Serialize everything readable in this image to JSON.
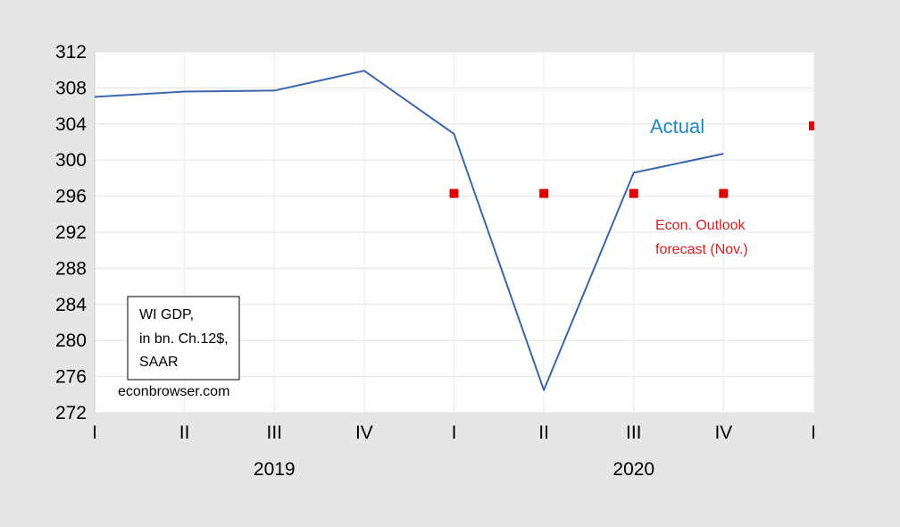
{
  "chart_data": {
    "type": "line",
    "categories": [
      "I",
      "II",
      "III",
      "IV",
      "I",
      "II",
      "III",
      "IV",
      "I"
    ],
    "years": [
      "2019",
      "2020"
    ],
    "ylim": [
      272,
      312
    ],
    "yticks": [
      312,
      308,
      304,
      300,
      296,
      292,
      288,
      284,
      280,
      276,
      272
    ],
    "grid": true,
    "series": [
      {
        "name": "Actual",
        "color": "#3b66ad",
        "style": "line",
        "values": [
          307.0,
          307.6,
          307.7,
          309.9,
          302.9,
          274.5,
          298.6,
          300.7,
          null
        ]
      },
      {
        "name": "Econ. Outlook forecast (Nov.)",
        "color": "#e00000",
        "style": "marker",
        "values": [
          null,
          null,
          null,
          null,
          296.3,
          296.3,
          296.3,
          296.3,
          303.8
        ]
      }
    ],
    "annotations": {
      "actual_label": "Actual",
      "actual_color": "#1b87c9",
      "forecast_label_line1": "Econ. Outlook",
      "forecast_label_line2": "forecast (Nov.)",
      "forecast_color": "#d42020"
    },
    "legend_box": [
      "WI GDP,",
      "in bn. Ch.12$,",
      "SAAR"
    ],
    "source": "econbrowser.com"
  }
}
